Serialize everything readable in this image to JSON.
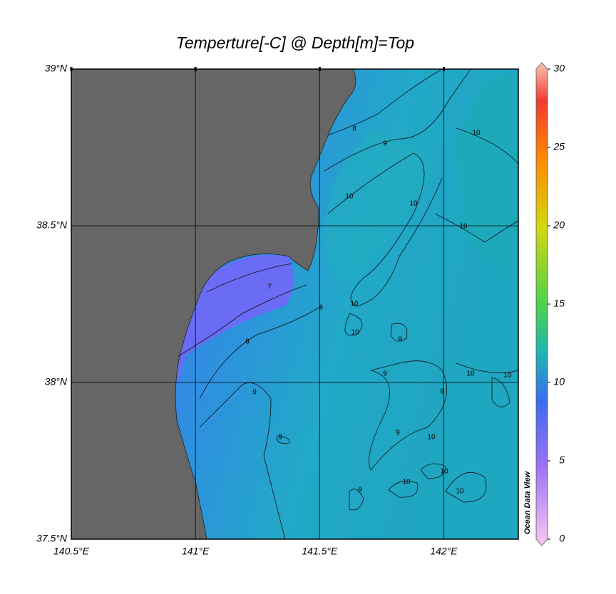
{
  "title": "Temperture[-C] @ Depth[m]=Top",
  "map": {
    "xlim": [
      140.5,
      142.3
    ],
    "ylim": [
      37.5,
      39
    ],
    "xticks": [
      {
        "value": 140.5,
        "label": "140.5°E"
      },
      {
        "value": 141,
        "label": "141°E"
      },
      {
        "value": 141.5,
        "label": "141.5°E"
      },
      {
        "value": 142,
        "label": "142°E"
      }
    ],
    "yticks": [
      {
        "value": 37.5,
        "label": "37.5°N"
      },
      {
        "value": 38,
        "label": "38°N"
      },
      {
        "value": 38.5,
        "label": "38.5°N"
      },
      {
        "value": 39,
        "label": "39°N"
      }
    ],
    "grid": true,
    "contour_labels": [
      8,
      9,
      10,
      10,
      10,
      10,
      7,
      8,
      9,
      10,
      10,
      9,
      9,
      9,
      9,
      9,
      10,
      9,
      10,
      10,
      10,
      10,
      10,
      9
    ]
  },
  "colorbar": {
    "lim": [
      0,
      30
    ],
    "ticks": [
      0,
      5,
      10,
      15,
      20,
      25,
      30
    ],
    "label": "Ocean Data View"
  }
}
